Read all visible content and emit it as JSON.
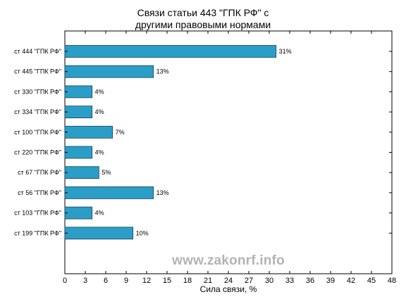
{
  "chart_data": {
    "type": "bar",
    "orientation": "horizontal",
    "title": [
      "Связи статьи 443 \"ГПК РФ\" с",
      "другими правовыми нормами"
    ],
    "xlabel": "Сила связи, %",
    "ylabel": "",
    "categories": [
      "ст 444 \"ГПК РФ\"",
      "ст 445 \"ГПК РФ\"",
      "ст 330 \"ГПК РФ\"",
      "ст 334 \"ГПК РФ\"",
      "ст 100 \"ГПК РФ\"",
      "ст 220 \"ГПК РФ\"",
      "ст 67 \"ГПК РФ\"",
      "ст 56 \"ГПК РФ\"",
      "ст 103 \"ГПК РФ\"",
      "ст 199 \"ГПК РФ\""
    ],
    "values": [
      31,
      13,
      4,
      4,
      7,
      4,
      5,
      13,
      4,
      10
    ],
    "value_labels": [
      "31%",
      "13%",
      "4%",
      "4%",
      "7%",
      "4%",
      "5%",
      "13%",
      "4%",
      "10%"
    ],
    "xlim": [
      0,
      48
    ],
    "xticks": [
      0,
      3,
      6,
      9,
      12,
      15,
      18,
      21,
      24,
      27,
      30,
      33,
      36,
      39,
      42,
      45,
      48
    ],
    "bar_color": "#2b9ec8",
    "grid": false,
    "legend": "none"
  },
  "watermark": "www.zakonrf.info"
}
